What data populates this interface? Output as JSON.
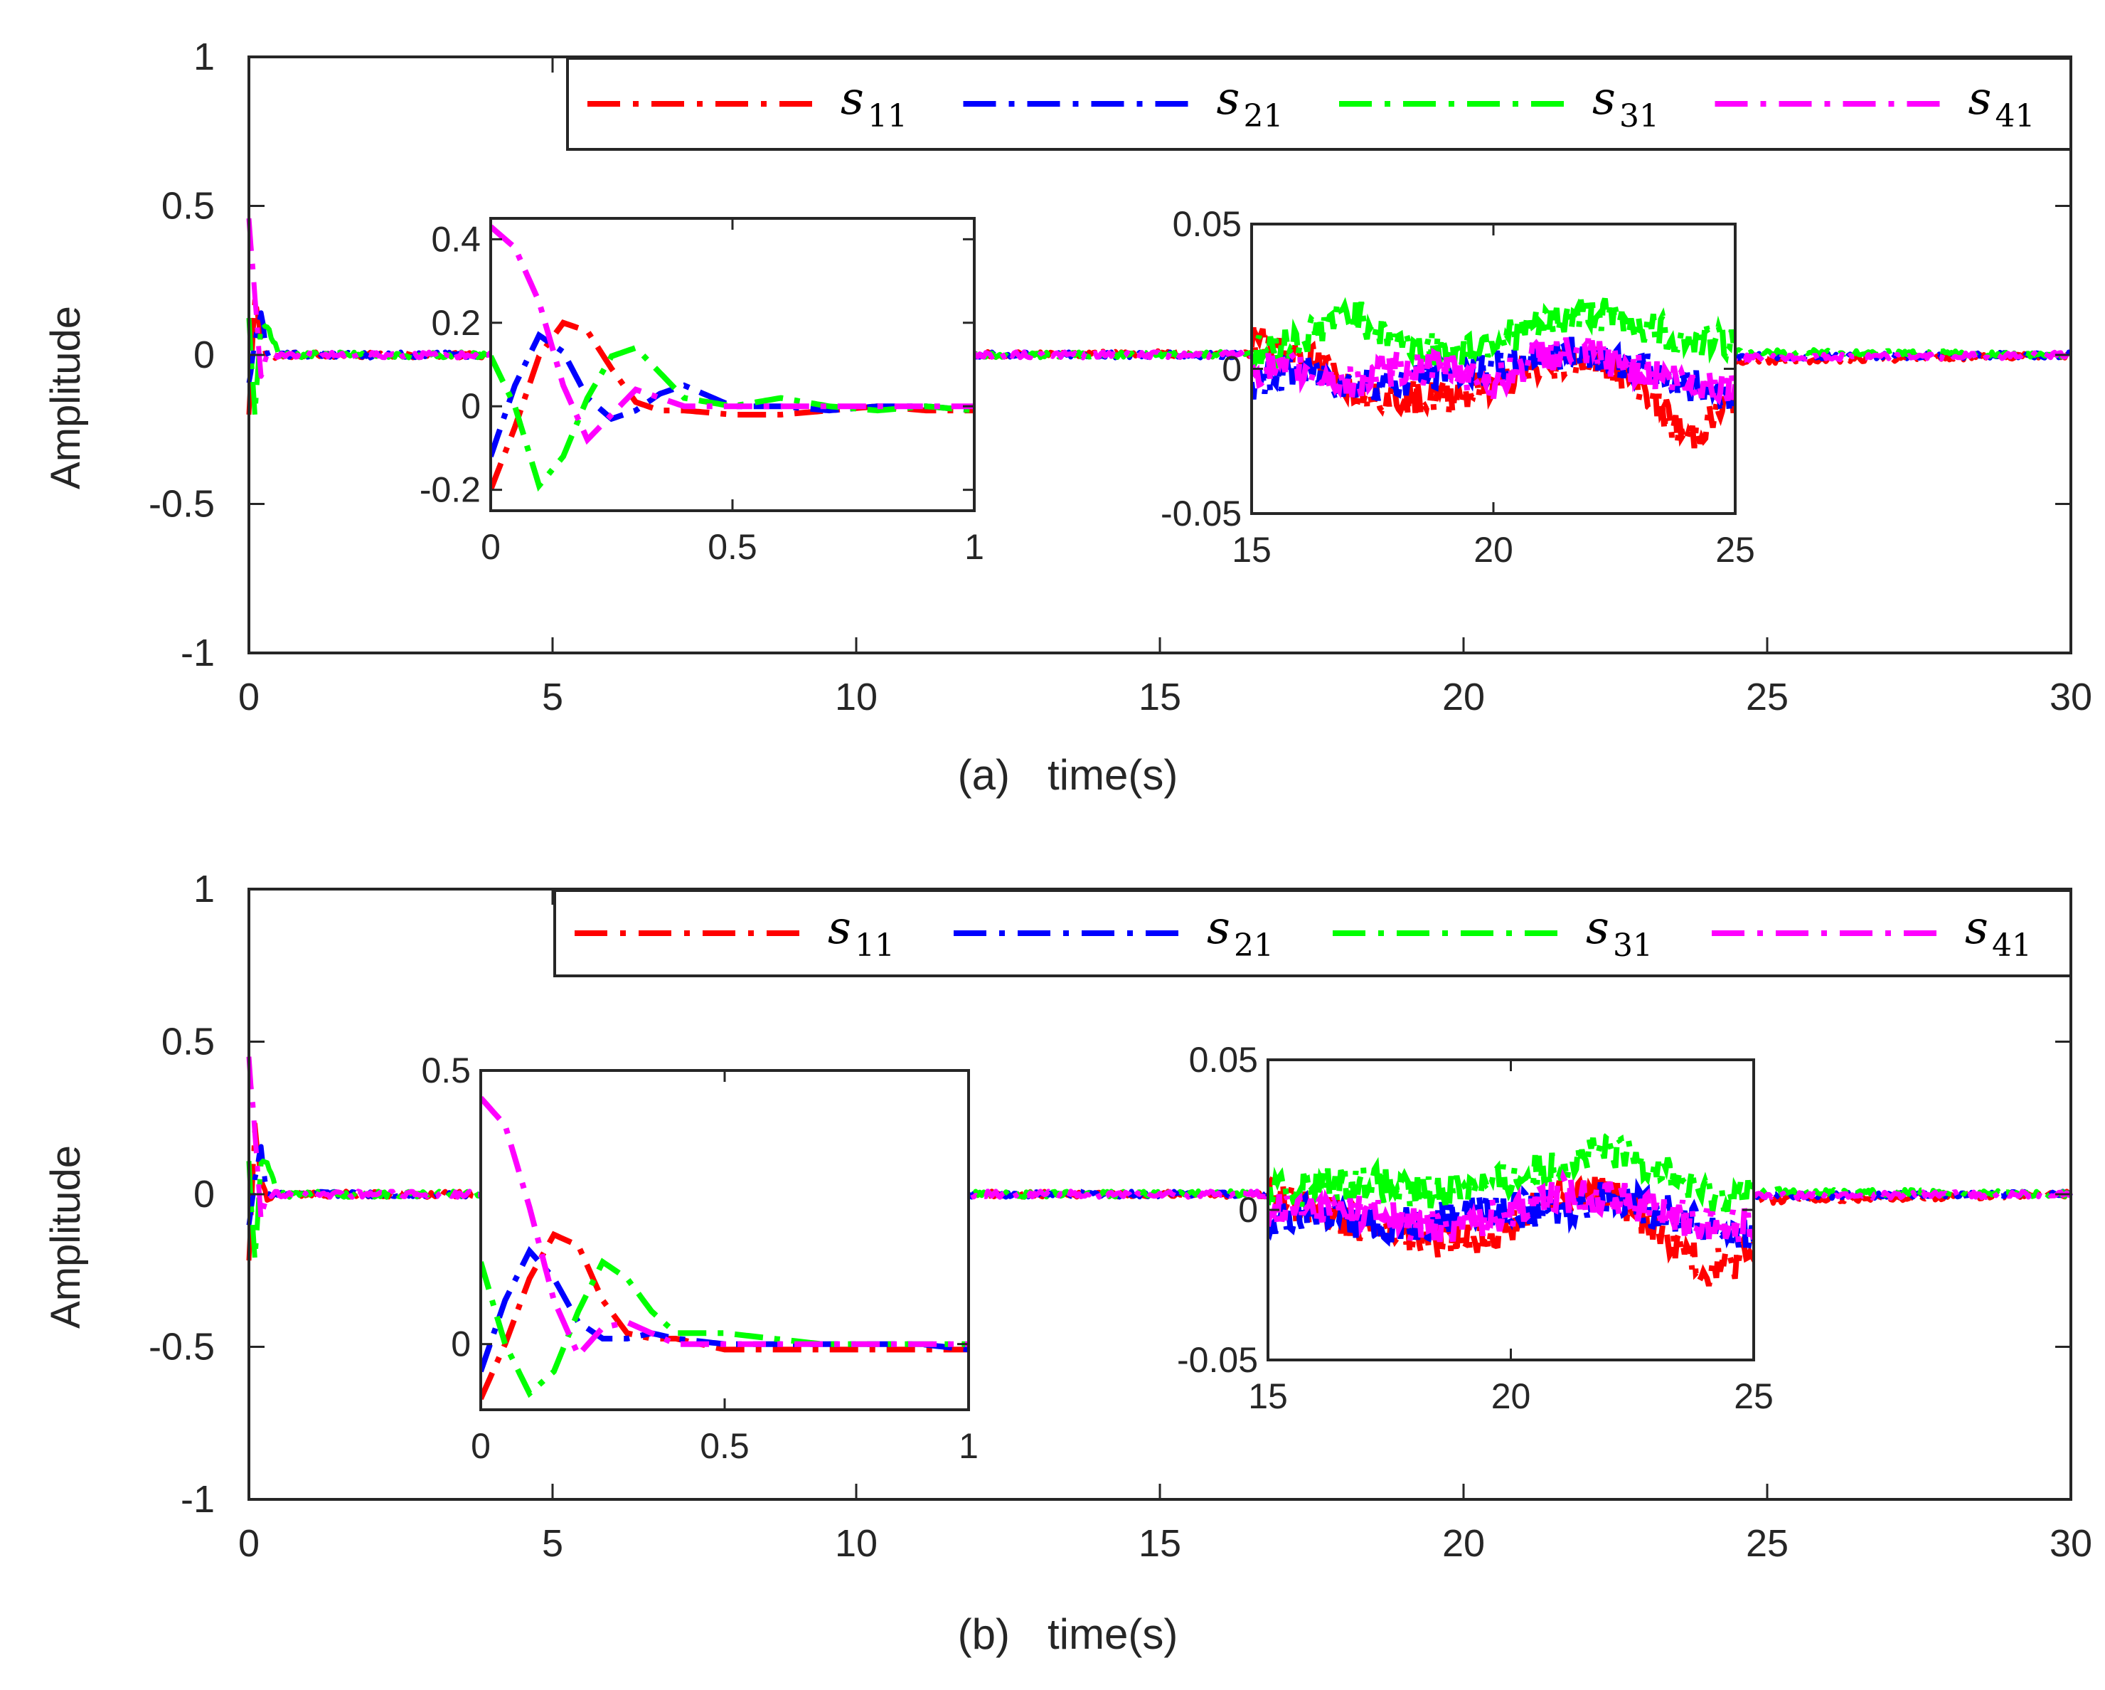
{
  "figure": {
    "colors": {
      "s11": "#ff0000",
      "s21": "#0000ff",
      "s31": "#00ff00",
      "s41": "#ff00ff",
      "axes": "#262626"
    },
    "panels": [
      {
        "id": "a",
        "caption_letter": "(a)",
        "caption_text": "time(s)",
        "ylabel": "Amplitude",
        "xlim": [
          0,
          30
        ],
        "ylim": [
          -1,
          1
        ],
        "xticks": [
          "0",
          "5",
          "10",
          "15",
          "20",
          "25",
          "30"
        ],
        "yticks": [
          "1",
          "0.5",
          "0",
          "-0.5",
          "-1"
        ],
        "legend": [
          {
            "symbol": "s",
            "sub": "11",
            "color": "#ff0000"
          },
          {
            "symbol": "s",
            "sub": "21",
            "color": "#0000ff"
          },
          {
            "symbol": "s",
            "sub": "31",
            "color": "#00ff00"
          },
          {
            "symbol": "s",
            "sub": "41",
            "color": "#ff00ff"
          }
        ],
        "inset1": {
          "xlim": [
            0,
            1
          ],
          "ylim": [
            -0.25,
            0.45
          ],
          "xticks": [
            "0",
            "0.5",
            "1"
          ],
          "yticks": [
            "0.4",
            "0.2",
            "0",
            "-0.2"
          ]
        },
        "inset2": {
          "xlim": [
            15,
            25
          ],
          "ylim": [
            -0.05,
            0.05
          ],
          "xticks": [
            "15",
            "20",
            "25"
          ],
          "yticks": [
            "0.05",
            "0",
            "-0.05"
          ]
        }
      },
      {
        "id": "b",
        "caption_letter": "(b)",
        "caption_text": "time(s)",
        "ylabel": "Amplitude",
        "xlim": [
          0,
          30
        ],
        "ylim": [
          -1,
          1
        ],
        "xticks": [
          "0",
          "5",
          "10",
          "15",
          "20",
          "25",
          "30"
        ],
        "yticks": [
          "1",
          "0.5",
          "0",
          "-0.5",
          "-1"
        ],
        "legend": [
          {
            "symbol": "s",
            "sub": "11",
            "color": "#ff0000"
          },
          {
            "symbol": "s",
            "sub": "21",
            "color": "#0000ff"
          },
          {
            "symbol": "s",
            "sub": "31",
            "color": "#00ff00"
          },
          {
            "symbol": "s",
            "sub": "41",
            "color": "#ff00ff"
          }
        ],
        "inset1": {
          "xlim": [
            0,
            1
          ],
          "ylim": [
            -0.12,
            0.5
          ],
          "xticks": [
            "0",
            "0.5",
            "1"
          ],
          "yticks": [
            "0.5",
            "0"
          ]
        },
        "inset2": {
          "xlim": [
            15,
            25
          ],
          "ylim": [
            -0.05,
            0.05
          ],
          "xticks": [
            "15",
            "20",
            "25"
          ],
          "yticks": [
            "0.05",
            "0",
            "-0.05"
          ]
        }
      }
    ]
  },
  "chart_data": [
    {
      "type": "line",
      "title": "(a) time(s)",
      "xlabel": "time(s)",
      "ylabel": "Amplitude",
      "xlim": [
        0,
        30
      ],
      "ylim": [
        -1,
        1
      ],
      "grid": false,
      "legend_position": "top-right",
      "x": [
        0,
        0.1,
        0.2,
        0.3,
        0.5,
        1,
        2,
        5,
        10,
        15,
        20,
        25,
        30
      ],
      "series": [
        {
          "name": "s11",
          "values": [
            -0.2,
            0.2,
            0.05,
            -0.01,
            0.0,
            0.0,
            0.0,
            0.0,
            0.0,
            0.005,
            -0.01,
            -0.02,
            0.0
          ]
        },
        {
          "name": "s21",
          "values": [
            -0.1,
            0.05,
            0.15,
            0.0,
            0.0,
            0.0,
            0.0,
            0.0,
            0.0,
            0.0,
            0.0,
            -0.005,
            0.0
          ]
        },
        {
          "name": "s31",
          "values": [
            0.12,
            -0.2,
            0.1,
            0.1,
            0.0,
            0.0,
            0.0,
            0.0,
            0.0,
            0.0,
            0.015,
            0.01,
            0.0
          ]
        },
        {
          "name": "s41",
          "values": [
            0.45,
            0.2,
            -0.08,
            0.0,
            0.0,
            0.0,
            0.0,
            0.0,
            0.0,
            0.0,
            0.0,
            -0.01,
            0.0
          ]
        }
      ],
      "insets": [
        {
          "xlim": [
            0,
            1
          ],
          "ylim": [
            -0.25,
            0.45
          ],
          "x": [
            0,
            0.05,
            0.1,
            0.15,
            0.2,
            0.25,
            0.3,
            0.35,
            0.4,
            0.5,
            0.6,
            0.7,
            0.8,
            0.9,
            1.0
          ],
          "series": [
            {
              "name": "s11",
              "values": [
                -0.2,
                -0.05,
                0.12,
                0.2,
                0.18,
                0.09,
                0.01,
                -0.01,
                -0.01,
                -0.02,
                -0.02,
                -0.01,
                0.0,
                -0.01,
                -0.01
              ]
            },
            {
              "name": "s21",
              "values": [
                -0.12,
                0.05,
                0.17,
                0.13,
                0.02,
                -0.03,
                -0.01,
                0.03,
                0.05,
                0.0,
                0.0,
                -0.01,
                0.0,
                0.0,
                -0.01
              ]
            },
            {
              "name": "s31",
              "values": [
                0.12,
                0.0,
                -0.19,
                -0.12,
                0.02,
                0.12,
                0.14,
                0.08,
                0.02,
                0.0,
                0.02,
                0.0,
                -0.01,
                0.0,
                -0.01
              ]
            },
            {
              "name": "s41",
              "values": [
                0.43,
                0.38,
                0.25,
                0.05,
                -0.08,
                -0.02,
                0.04,
                0.02,
                0.0,
                0.0,
                0.0,
                0.0,
                0.0,
                0.0,
                0.0
              ]
            }
          ]
        },
        {
          "xlim": [
            15,
            25
          ],
          "ylim": [
            -0.05,
            0.05
          ],
          "x": [
            15,
            16,
            17,
            18,
            19,
            20,
            21,
            22,
            23,
            24,
            25
          ],
          "series": [
            {
              "name": "s11",
              "values": [
                0.01,
                0.005,
                -0.005,
                -0.01,
                -0.01,
                -0.005,
                0.0,
                0.005,
                -0.005,
                -0.025,
                -0.01
              ]
            },
            {
              "name": "s21",
              "values": [
                -0.005,
                0.0,
                -0.005,
                -0.005,
                0.0,
                0.0,
                0.005,
                0.005,
                0.0,
                -0.005,
                -0.01
              ]
            },
            {
              "name": "s31",
              "values": [
                0.005,
                0.01,
                0.02,
                0.01,
                0.005,
                0.01,
                0.015,
                0.02,
                0.015,
                0.01,
                0.01
              ]
            },
            {
              "name": "s41",
              "values": [
                0.0,
                0.0,
                -0.005,
                0.0,
                0.0,
                -0.005,
                0.005,
                0.005,
                0.0,
                -0.005,
                -0.005
              ]
            }
          ]
        }
      ]
    },
    {
      "type": "line",
      "title": "(b) time(s)",
      "xlabel": "time(s)",
      "ylabel": "Amplitude",
      "xlim": [
        0,
        30
      ],
      "ylim": [
        -1,
        1
      ],
      "grid": false,
      "legend_position": "top-right",
      "x": [
        0,
        0.1,
        0.2,
        0.3,
        0.5,
        1,
        2,
        5,
        10,
        15,
        20,
        25,
        30
      ],
      "series": [
        {
          "name": "s11",
          "values": [
            -0.22,
            0.22,
            0.05,
            -0.01,
            0.0,
            0.0,
            0.0,
            0.0,
            0.0,
            0.0,
            -0.01,
            -0.02,
            0.0
          ]
        },
        {
          "name": "s21",
          "values": [
            -0.1,
            0.05,
            0.15,
            0.0,
            0.0,
            0.0,
            0.0,
            0.0,
            0.0,
            0.0,
            0.0,
            -0.005,
            0.0
          ]
        },
        {
          "name": "s31",
          "values": [
            0.1,
            -0.22,
            0.1,
            0.1,
            0.0,
            0.0,
            0.0,
            0.0,
            0.0,
            0.0,
            0.01,
            0.01,
            0.0
          ]
        },
        {
          "name": "s41",
          "values": [
            0.45,
            0.2,
            -0.08,
            0.0,
            0.0,
            0.0,
            0.0,
            0.0,
            0.0,
            0.0,
            0.0,
            -0.005,
            0.0
          ]
        }
      ],
      "insets": [
        {
          "xlim": [
            0,
            1
          ],
          "ylim": [
            -0.12,
            0.5
          ],
          "x": [
            0,
            0.05,
            0.1,
            0.15,
            0.2,
            0.25,
            0.3,
            0.35,
            0.4,
            0.5,
            0.6,
            0.7,
            0.8,
            0.9,
            1.0
          ],
          "series": [
            {
              "name": "s11",
              "values": [
                -0.1,
                0.0,
                0.12,
                0.2,
                0.18,
                0.08,
                0.02,
                0.01,
                0.01,
                -0.01,
                -0.01,
                -0.01,
                -0.01,
                -0.01,
                -0.01
              ]
            },
            {
              "name": "s21",
              "values": [
                -0.05,
                0.08,
                0.17,
                0.12,
                0.04,
                0.01,
                0.01,
                0.02,
                0.01,
                0.0,
                0.0,
                0.0,
                0.0,
                0.0,
                -0.01
              ]
            },
            {
              "name": "s31",
              "values": [
                0.15,
                0.0,
                -0.09,
                -0.05,
                0.06,
                0.15,
                0.12,
                0.06,
                0.02,
                0.02,
                0.01,
                0.0,
                0.0,
                0.0,
                0.0
              ]
            },
            {
              "name": "s41",
              "values": [
                0.45,
                0.4,
                0.25,
                0.08,
                -0.02,
                0.03,
                0.04,
                0.02,
                0.0,
                0.0,
                0.0,
                0.0,
                0.0,
                0.0,
                0.0
              ]
            }
          ]
        },
        {
          "xlim": [
            15,
            25
          ],
          "ylim": [
            -0.05,
            0.05
          ],
          "x": [
            15,
            16,
            17,
            18,
            19,
            20,
            21,
            22,
            23,
            24,
            25
          ],
          "series": [
            {
              "name": "s11",
              "values": [
                0.005,
                0.0,
                -0.005,
                -0.01,
                -0.01,
                -0.005,
                0.005,
                0.005,
                -0.005,
                -0.02,
                -0.015
              ]
            },
            {
              "name": "s21",
              "values": [
                -0.005,
                0.0,
                -0.005,
                -0.005,
                0.0,
                0.0,
                0.0,
                0.005,
                0.0,
                -0.005,
                -0.01
              ]
            },
            {
              "name": "s31",
              "values": [
                0.005,
                0.008,
                0.01,
                0.005,
                0.008,
                0.01,
                0.015,
                0.02,
                0.015,
                0.005,
                0.005
              ]
            },
            {
              "name": "s41",
              "values": [
                0.0,
                0.0,
                0.0,
                -0.005,
                -0.005,
                0.0,
                0.005,
                0.005,
                0.0,
                -0.005,
                -0.005
              ]
            }
          ]
        }
      ]
    }
  ]
}
